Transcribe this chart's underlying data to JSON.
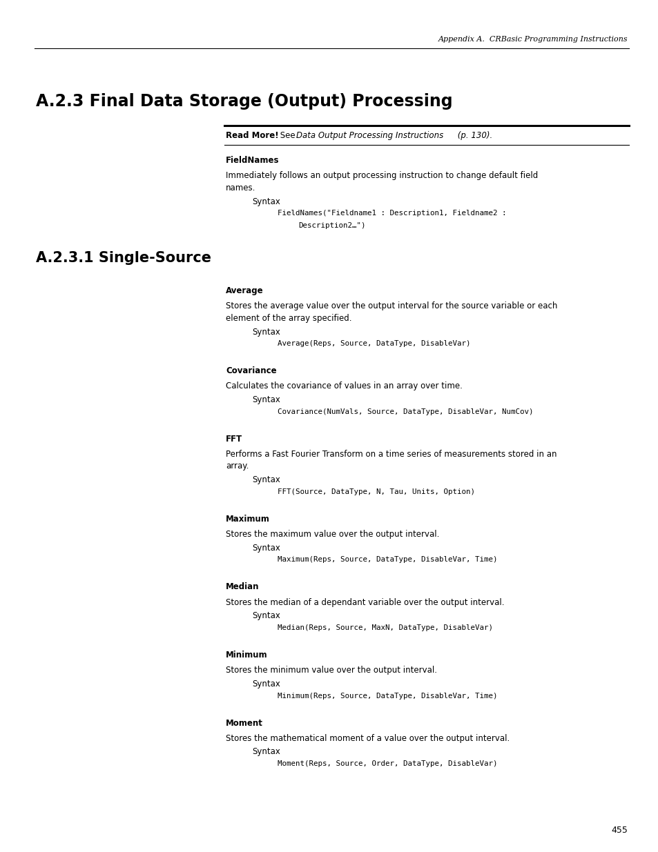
{
  "page_width": 9.54,
  "page_height": 12.35,
  "bg_color": "#ffffff",
  "header_text": "Appendix A.  CRBasic Programming Instructions",
  "main_title": "A.2.3 Final Data Storage (Output) Processing",
  "section_title": "A.2.3.1 Single-Source",
  "page_number": "455",
  "lm": 3.27,
  "indent1": 3.65,
  "indent2": 4.02
}
